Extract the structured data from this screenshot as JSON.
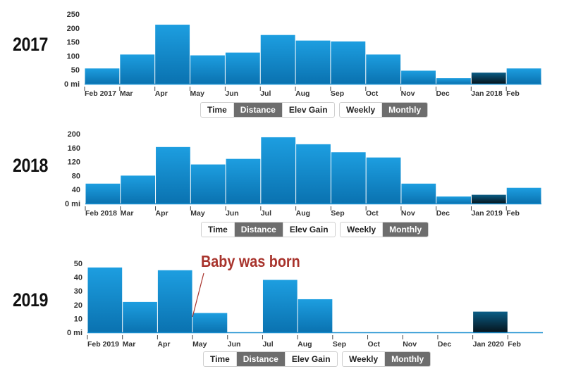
{
  "colors": {
    "bar": "#1a8fd0",
    "bar_highlight": "#0b2a3c",
    "axis": "#1a8fd0",
    "annotation": "#a8332c",
    "active_button": "#6d6d6d"
  },
  "panels": [
    {
      "year": "2017",
      "toggle_metric": [
        "Time",
        "Distance",
        "Elev Gain"
      ],
      "metric_active": "Distance",
      "toggle_period": [
        "Weekly",
        "Monthly"
      ],
      "period_active": "Monthly"
    },
    {
      "year": "2018",
      "toggle_metric": [
        "Time",
        "Distance",
        "Elev Gain"
      ],
      "metric_active": "Distance",
      "toggle_period": [
        "Weekly",
        "Monthly"
      ],
      "period_active": "Monthly"
    },
    {
      "year": "2019",
      "toggle_metric": [
        "Time",
        "Distance",
        "Elev Gain"
      ],
      "metric_active": "Distance",
      "toggle_period": [
        "Weekly",
        "Monthly"
      ],
      "period_active": "Monthly"
    }
  ],
  "annotation": {
    "text": "Baby was born",
    "month": "May"
  },
  "chart_data": [
    {
      "type": "bar",
      "title": "",
      "categories": [
        "Feb 2017",
        "Mar",
        "Apr",
        "May",
        "Jun",
        "Jul",
        "Aug",
        "Sep",
        "Oct",
        "Nov",
        "Dec",
        "Jan 2018",
        "Feb"
      ],
      "values": [
        55,
        105,
        212,
        102,
        112,
        175,
        155,
        152,
        105,
        47,
        20,
        40,
        55
      ],
      "highlight_index": 11,
      "ylim": [
        0,
        250
      ],
      "yticks": [
        0,
        50,
        100,
        150,
        200,
        250
      ],
      "ytick_labels": [
        "0 mi",
        "50",
        "100",
        "150",
        "200",
        "250"
      ],
      "grid": false
    },
    {
      "type": "bar",
      "title": "",
      "categories": [
        "Feb 2018",
        "Mar",
        "Apr",
        "May",
        "Jun",
        "Jul",
        "Aug",
        "Sep",
        "Oct",
        "Nov",
        "Dec",
        "Jan 2019",
        "Feb"
      ],
      "values": [
        57,
        80,
        162,
        112,
        128,
        190,
        170,
        147,
        132,
        57,
        20,
        25,
        45
      ],
      "highlight_index": 11,
      "ylim": [
        0,
        200
      ],
      "yticks": [
        0,
        40,
        80,
        120,
        160,
        200
      ],
      "ytick_labels": [
        "0 mi",
        "40",
        "80",
        "120",
        "160",
        "200"
      ],
      "grid": false
    },
    {
      "type": "bar",
      "title": "",
      "categories": [
        "Feb 2019",
        "Mar",
        "Apr",
        "May",
        "Jun",
        "Jul",
        "Aug",
        "Sep",
        "Oct",
        "Nov",
        "Dec",
        "Jan 2020",
        "Feb"
      ],
      "values": [
        47,
        22,
        45,
        14,
        0,
        38,
        24,
        0,
        0,
        0,
        0,
        15,
        0
      ],
      "highlight_index": 11,
      "ylim": [
        0,
        50
      ],
      "yticks": [
        0,
        10,
        20,
        30,
        40,
        50
      ],
      "ytick_labels": [
        "0 mi",
        "10",
        "20",
        "30",
        "40",
        "50"
      ],
      "grid": false
    }
  ]
}
